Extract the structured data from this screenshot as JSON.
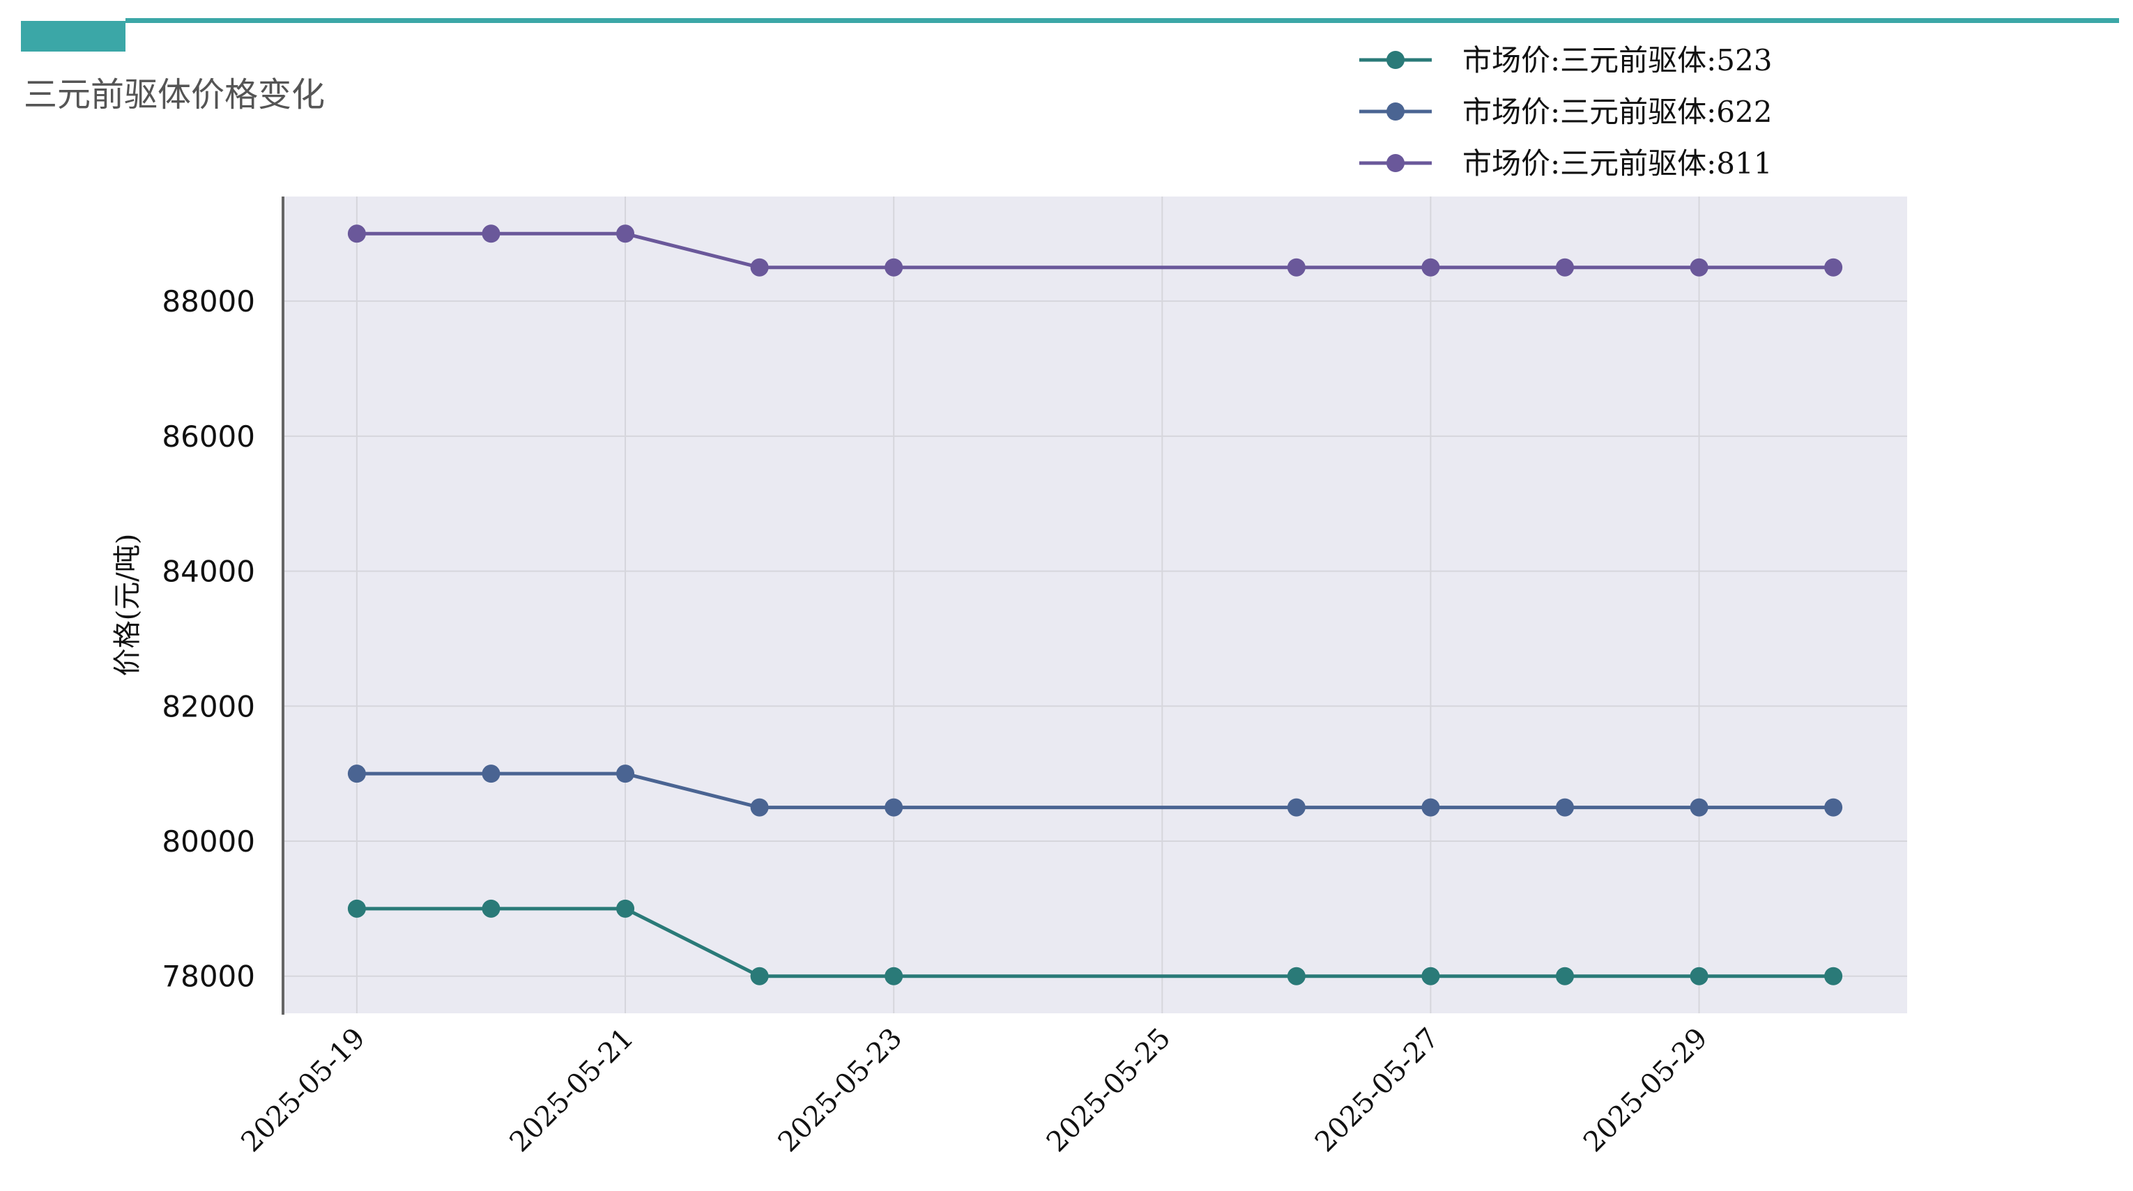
{
  "colors": {
    "accent": "#3ba7a7",
    "plot_bg": "#eaeaf2",
    "grid": "#d6d6dc",
    "series": [
      "#2a7a78",
      "#4a6492",
      "#6a589a"
    ]
  },
  "chart_data": {
    "type": "line",
    "title": "三元前驱体价格变化",
    "xlabel": "",
    "ylabel": "价格(元/吨)",
    "x": [
      "2025-05-19",
      "2025-05-20",
      "2025-05-21",
      "2025-05-22",
      "2025-05-23",
      "2025-05-26",
      "2025-05-27",
      "2025-05-28",
      "2025-05-29",
      "2025-05-30"
    ],
    "x_ticks": [
      "2025-05-19",
      "2025-05-21",
      "2025-05-23",
      "2025-05-25",
      "2025-05-27",
      "2025-05-29"
    ],
    "xlim": [
      "2025-05-18.45",
      "2025-05-30.55"
    ],
    "ylim": [
      77450,
      89550
    ],
    "y_ticks": [
      78000,
      80000,
      82000,
      84000,
      86000,
      88000
    ],
    "grid": true,
    "legend_position": "top-right",
    "series": [
      {
        "name": "市场价:三元前驱体:523",
        "values": [
          79000,
          79000,
          79000,
          78000,
          78000,
          78000,
          78000,
          78000,
          78000,
          78000
        ]
      },
      {
        "name": "市场价:三元前驱体:622",
        "values": [
          81000,
          81000,
          81000,
          80500,
          80500,
          80500,
          80500,
          80500,
          80500,
          80500
        ]
      },
      {
        "name": "市场价:三元前驱体:811",
        "values": [
          89000,
          89000,
          89000,
          88500,
          88500,
          88500,
          88500,
          88500,
          88500,
          88500
        ]
      }
    ]
  }
}
